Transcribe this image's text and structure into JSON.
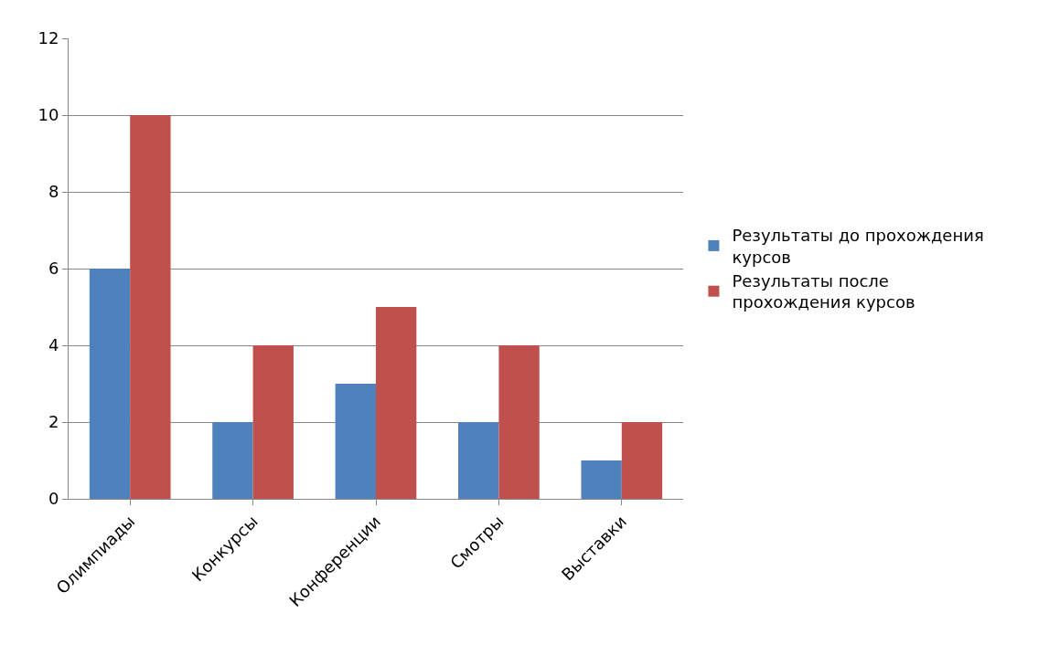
{
  "chart_data": {
    "type": "bar",
    "categories": [
      "Олимпиады",
      "Конкурсы",
      "Конференции",
      "Смотры",
      "Выставки"
    ],
    "series": [
      {
        "name": "Результаты до прохождения курсов",
        "color": "#4f81bd",
        "values": [
          6,
          2,
          3,
          2,
          1
        ]
      },
      {
        "name": "Результаты после прохождения курсов",
        "color": "#c0504d",
        "values": [
          10,
          4,
          5,
          4,
          2
        ]
      }
    ],
    "ylim": [
      0,
      12
    ],
    "yticks": [
      0,
      2,
      4,
      6,
      8,
      10,
      12
    ],
    "grid": "y",
    "legend": "right"
  }
}
